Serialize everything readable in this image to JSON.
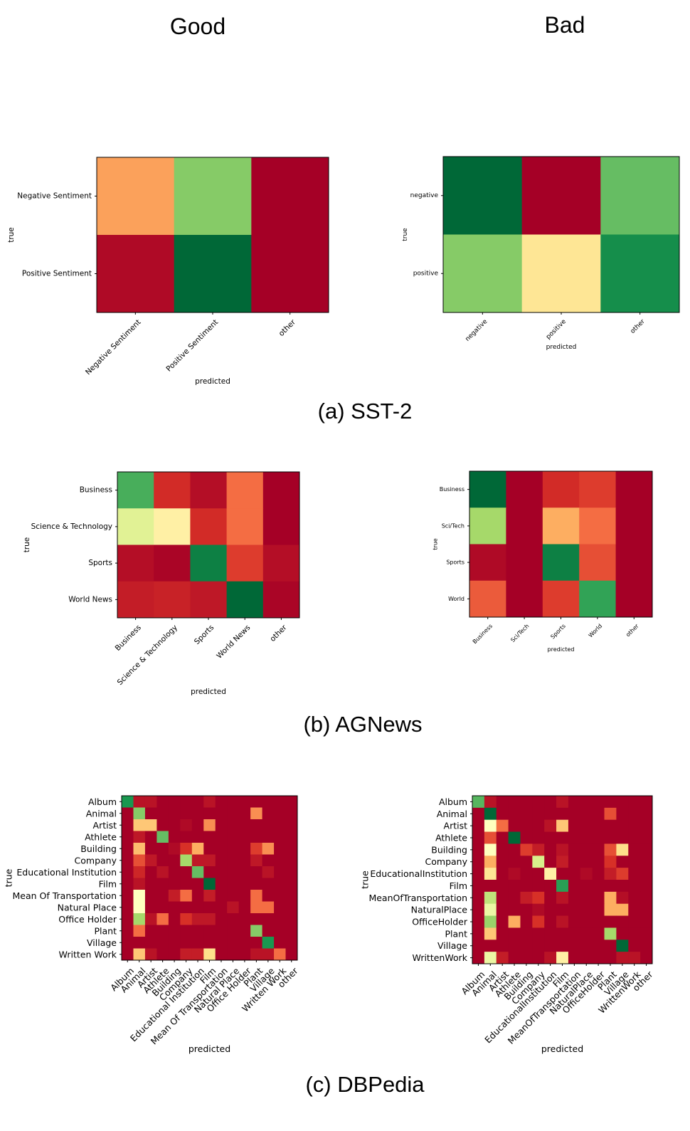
{
  "columns": {
    "left": "Good",
    "right": "Bad"
  },
  "captions": [
    "(a) SST-2",
    "(b) AGNews",
    "(c) DBPedia"
  ],
  "colors": {
    "scale_low": "#a50026",
    "scale_mid": "#ffffbf",
    "scale_high": "#006837"
  },
  "chart_data": [
    {
      "id": "sst2-good",
      "type": "heatmap",
      "colormap": "RdYlGn",
      "vmin": 0,
      "vmax": 1,
      "xlabel": "predicted",
      "ylabel": "true",
      "x_categories": [
        "Negative Sentiment",
        "Positive Sentiment",
        "other"
      ],
      "y_categories": [
        "Negative Sentiment",
        "Positive Sentiment"
      ],
      "values": [
        [
          0.28,
          0.75,
          0.0
        ],
        [
          0.02,
          1.0,
          0.0
        ]
      ]
    },
    {
      "id": "sst2-bad",
      "type": "heatmap",
      "colormap": "RdYlGn",
      "vmin": 0,
      "vmax": 1,
      "xlabel": "predicted",
      "ylabel": "true",
      "x_categories": [
        "negative",
        "positive",
        "other"
      ],
      "y_categories": [
        "negative",
        "positive"
      ],
      "values": [
        [
          1.0,
          0.0,
          0.8
        ],
        [
          0.75,
          0.42,
          0.92
        ]
      ]
    },
    {
      "id": "agnews-good",
      "type": "heatmap",
      "colormap": "RdYlGn",
      "vmin": 0,
      "vmax": 1,
      "xlabel": "predicted",
      "ylabel": "true",
      "x_categories": [
        "Business",
        "Science & Technology",
        "Sports",
        "World News",
        "other"
      ],
      "y_categories": [
        "Business",
        "Science & Technology",
        "Sports",
        "World News"
      ],
      "values": [
        [
          0.84,
          0.09,
          0.03,
          0.2,
          0.0
        ],
        [
          0.58,
          0.45,
          0.09,
          0.2,
          0.0
        ],
        [
          0.03,
          0.01,
          0.95,
          0.12,
          0.03
        ],
        [
          0.06,
          0.07,
          0.05,
          1.0,
          0.01
        ]
      ]
    },
    {
      "id": "agnews-bad",
      "type": "heatmap",
      "colormap": "RdYlGn",
      "vmin": 0,
      "vmax": 1,
      "xlabel": "predicted",
      "ylabel": "true",
      "x_categories": [
        "Business",
        "Sci/Tech",
        "Sports",
        "World",
        "other"
      ],
      "y_categories": [
        "Business",
        "Sci/Tech",
        "Sports",
        "World"
      ],
      "values": [
        [
          1.0,
          0.0,
          0.09,
          0.12,
          0.0
        ],
        [
          0.7,
          0.0,
          0.3,
          0.2,
          0.0
        ],
        [
          0.02,
          0.0,
          0.95,
          0.15,
          0.0
        ],
        [
          0.17,
          0.0,
          0.12,
          0.87,
          0.0
        ]
      ]
    },
    {
      "id": "dbpedia-good",
      "type": "heatmap",
      "colormap": "RdYlGn",
      "vmin": 0,
      "vmax": 1,
      "xlabel": "predicted",
      "ylabel": "true",
      "x_categories": [
        "Album",
        "Animal",
        "Artist",
        "Athlete",
        "Building",
        "Company",
        "Educational Institution",
        "Film",
        "Mean Of Transportation",
        "Natural Place",
        "Office Holder",
        "Plant",
        "Village",
        "Written Work",
        "other"
      ],
      "y_categories": [
        "Album",
        "Animal",
        "Artist",
        "Athlete",
        "Building",
        "Company",
        "Educational Institution",
        "Film",
        "Mean Of Transportation",
        "Natural Place",
        "Office Holder",
        "Plant",
        "Village",
        "Written Work"
      ],
      "values": [
        [
          0.9,
          0.04,
          0.04,
          0.0,
          0.0,
          0.0,
          0.0,
          0.04,
          0.0,
          0.0,
          0.0,
          0.0,
          0.0,
          0.0,
          0.0
        ],
        [
          0.0,
          0.75,
          0.0,
          0.0,
          0.0,
          0.0,
          0.0,
          0.0,
          0.0,
          0.0,
          0.0,
          0.25,
          0.0,
          0.0,
          0.0
        ],
        [
          0.0,
          0.35,
          0.35,
          0.0,
          0.0,
          0.02,
          0.0,
          0.25,
          0.0,
          0.0,
          0.0,
          0.0,
          0.0,
          0.0,
          0.0
        ],
        [
          0.0,
          0.05,
          0.0,
          0.8,
          0.0,
          0.0,
          0.0,
          0.0,
          0.0,
          0.0,
          0.0,
          0.0,
          0.0,
          0.0,
          0.0
        ],
        [
          0.0,
          0.33,
          0.0,
          0.0,
          0.02,
          0.1,
          0.3,
          0.0,
          0.0,
          0.0,
          0.0,
          0.12,
          0.25,
          0.0,
          0.0
        ],
        [
          0.0,
          0.15,
          0.05,
          0.0,
          0.0,
          0.7,
          0.05,
          0.05,
          0.0,
          0.0,
          0.0,
          0.05,
          0.0,
          0.0,
          0.0
        ],
        [
          0.0,
          0.08,
          0.0,
          0.04,
          0.0,
          0.0,
          0.8,
          0.0,
          0.0,
          0.0,
          0.0,
          0.0,
          0.04,
          0.0,
          0.0
        ],
        [
          0.0,
          0.04,
          0.0,
          0.0,
          0.0,
          0.0,
          0.0,
          1.0,
          0.0,
          0.0,
          0.0,
          0.0,
          0.0,
          0.0,
          0.0
        ],
        [
          0.0,
          0.5,
          0.0,
          0.0,
          0.06,
          0.2,
          0.0,
          0.06,
          0.0,
          0.0,
          0.0,
          0.2,
          0.0,
          0.0,
          0.0
        ],
        [
          0.0,
          0.5,
          0.0,
          0.0,
          0.0,
          0.0,
          0.0,
          0.0,
          0.0,
          0.04,
          0.0,
          0.2,
          0.2,
          0.0,
          0.0
        ],
        [
          0.0,
          0.7,
          0.04,
          0.2,
          0.0,
          0.1,
          0.05,
          0.05,
          0.0,
          0.0,
          0.0,
          0.0,
          0.0,
          0.0,
          0.0
        ],
        [
          0.0,
          0.2,
          0.0,
          0.0,
          0.0,
          0.0,
          0.0,
          0.0,
          0.0,
          0.0,
          0.0,
          0.75,
          0.0,
          0.0,
          0.0
        ],
        [
          0.0,
          0.0,
          0.0,
          0.0,
          0.0,
          0.0,
          0.0,
          0.0,
          0.0,
          0.0,
          0.0,
          0.0,
          0.9,
          0.0,
          0.0
        ],
        [
          0.0,
          0.35,
          0.04,
          0.0,
          0.0,
          0.06,
          0.06,
          0.4,
          0.0,
          0.0,
          0.0,
          0.04,
          0.04,
          0.2,
          0.0
        ]
      ]
    },
    {
      "id": "dbpedia-bad",
      "type": "heatmap",
      "colormap": "RdYlGn",
      "vmin": 0,
      "vmax": 1,
      "xlabel": "predicted",
      "ylabel": "true",
      "x_categories": [
        "Album",
        "Animal",
        "Artist",
        "Athlete",
        "Building",
        "Company",
        "EducationalInstitution",
        "Film",
        "MeanOfTransportation",
        "NaturalPlace",
        "OfficeHolder",
        "Plant",
        "Village",
        "WrittenWork",
        "other"
      ],
      "y_categories": [
        "Album",
        "Animal",
        "Artist",
        "Athlete",
        "Building",
        "Company",
        "EducationalInstitution",
        "Film",
        "MeanOfTransportation",
        "NaturalPlace",
        "OfficeHolder",
        "Plant",
        "Village",
        "WrittenWork"
      ],
      "values": [
        [
          0.82,
          0.04,
          0.0,
          0.0,
          0.0,
          0.0,
          0.0,
          0.04,
          0.0,
          0.0,
          0.0,
          0.0,
          0.0,
          0.0,
          0.0
        ],
        [
          0.0,
          1.0,
          0.0,
          0.0,
          0.0,
          0.0,
          0.0,
          0.0,
          0.0,
          0.0,
          0.0,
          0.15,
          0.0,
          0.0,
          0.0
        ],
        [
          0.0,
          0.5,
          0.2,
          0.0,
          0.0,
          0.0,
          0.04,
          0.35,
          0.0,
          0.0,
          0.0,
          0.0,
          0.0,
          0.0,
          0.0
        ],
        [
          0.0,
          0.15,
          0.0,
          1.0,
          0.0,
          0.0,
          0.0,
          0.0,
          0.0,
          0.0,
          0.0,
          0.0,
          0.0,
          0.0,
          0.0
        ],
        [
          0.0,
          0.5,
          0.0,
          0.0,
          0.12,
          0.06,
          0.0,
          0.04,
          0.0,
          0.0,
          0.0,
          0.15,
          0.4,
          0.0,
          0.0
        ],
        [
          0.0,
          0.3,
          0.0,
          0.0,
          0.0,
          0.6,
          0.0,
          0.06,
          0.0,
          0.0,
          0.0,
          0.1,
          0.0,
          0.0,
          0.0
        ],
        [
          0.0,
          0.42,
          0.0,
          0.02,
          0.0,
          0.0,
          0.45,
          0.0,
          0.0,
          0.02,
          0.0,
          0.06,
          0.12,
          0.0,
          0.0
        ],
        [
          0.0,
          0.0,
          0.0,
          0.0,
          0.0,
          0.0,
          0.0,
          0.88,
          0.0,
          0.0,
          0.0,
          0.0,
          0.0,
          0.0,
          0.0
        ],
        [
          0.0,
          0.65,
          0.0,
          0.0,
          0.06,
          0.1,
          0.0,
          0.04,
          0.0,
          0.0,
          0.0,
          0.3,
          0.03,
          0.0,
          0.0
        ],
        [
          0.0,
          0.55,
          0.0,
          0.0,
          0.0,
          0.02,
          0.0,
          0.0,
          0.0,
          0.0,
          0.0,
          0.3,
          0.3,
          0.0,
          0.0
        ],
        [
          0.0,
          0.72,
          0.0,
          0.3,
          0.0,
          0.1,
          0.0,
          0.04,
          0.0,
          0.0,
          0.0,
          0.0,
          0.0,
          0.0,
          0.0
        ],
        [
          0.0,
          0.35,
          0.0,
          0.0,
          0.0,
          0.0,
          0.0,
          0.0,
          0.0,
          0.0,
          0.0,
          0.7,
          0.0,
          0.0,
          0.0
        ],
        [
          0.0,
          0.0,
          0.0,
          0.0,
          0.0,
          0.0,
          0.0,
          0.0,
          0.0,
          0.0,
          0.0,
          0.0,
          1.0,
          0.0,
          0.0
        ],
        [
          0.0,
          0.55,
          0.06,
          0.0,
          0.0,
          0.0,
          0.04,
          0.45,
          0.0,
          0.0,
          0.0,
          0.0,
          0.04,
          0.04,
          0.0
        ]
      ]
    }
  ]
}
